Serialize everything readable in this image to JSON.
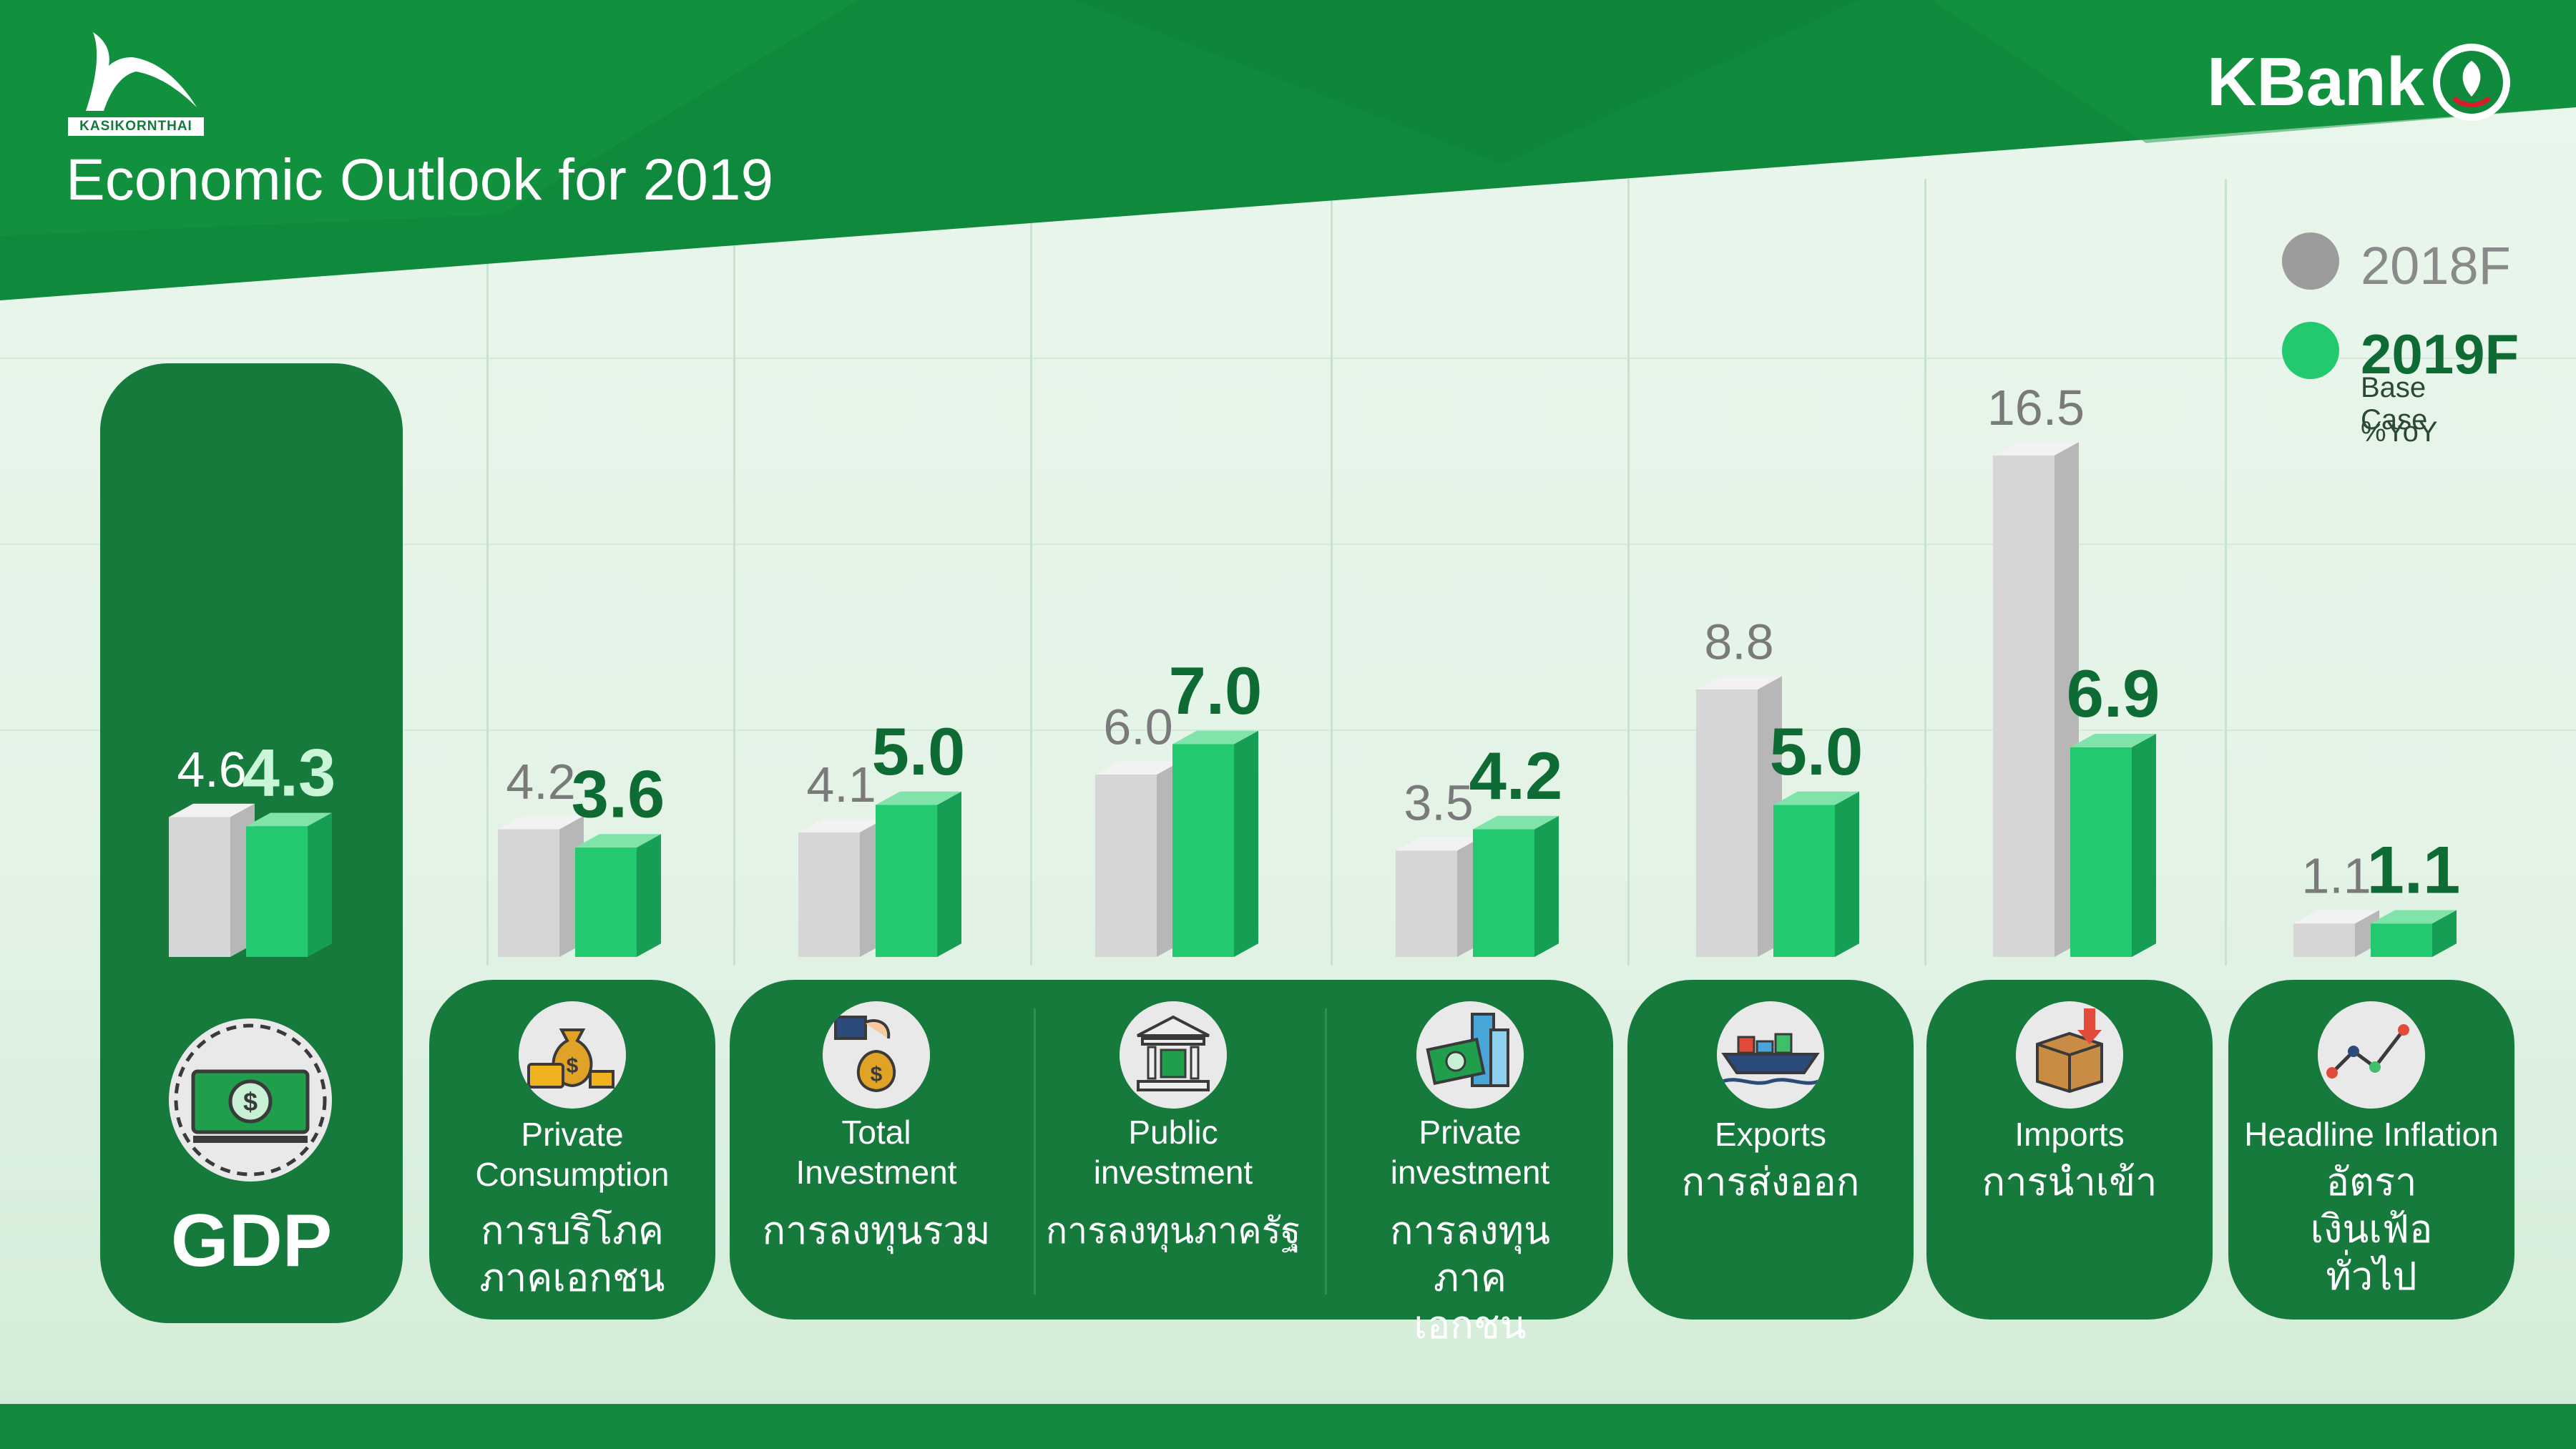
{
  "header": {
    "brand_small": "KASIKORNTHAI",
    "title": "Economic Outlook for 2019",
    "logo_text": "KBank"
  },
  "legend": {
    "series_2018": "2018F",
    "series_2019": "2019F",
    "base_case": "Base Case",
    "unit": "%YoY"
  },
  "colors": {
    "header_green": "#0f8a3d",
    "panel_green": "#157a3b",
    "bar_2018": "#d8d8d8",
    "bar_2019": "#23c96f",
    "gdp_2019_label": "#c9f5d9",
    "value_2018_text": "#7a7a7a",
    "value_2019_text": "#0e6b34"
  },
  "chart_data": {
    "type": "bar",
    "title": "Economic Outlook for 2019",
    "unit": "%YoY",
    "categories": [
      "GDP",
      "Private Consumption",
      "Total Investment",
      "Public investment",
      "Private investment",
      "Exports",
      "Imports",
      "Headline Inflation"
    ],
    "series": [
      {
        "name": "2018F",
        "values": [
          4.6,
          4.2,
          4.1,
          6.0,
          3.5,
          8.8,
          16.5,
          1.1
        ],
        "labels": [
          "4.6",
          "4.2",
          "4.1",
          "6.0",
          "3.5",
          "8.8",
          "16.5",
          "1.1"
        ]
      },
      {
        "name": "2019F",
        "values": [
          4.3,
          3.6,
          5.0,
          7.0,
          4.2,
          5.0,
          6.9,
          1.1
        ],
        "labels": [
          "4.3",
          "3.6",
          "5.0",
          "7.0",
          "4.2",
          "5.0",
          "6.9",
          "1.1"
        ]
      }
    ],
    "legend_position": "top-right"
  },
  "panels": [
    {
      "key": "gdp",
      "en": "GDP",
      "th": "",
      "icon": "money-cycle-icon"
    },
    {
      "key": "private-consumption",
      "en": "Private Consumption",
      "th": "การบริโภคภาคเอกชน",
      "icon": "money-bag-icon"
    },
    {
      "key": "total-investment",
      "en": "Total Investment",
      "th": "การลงทุนรวม",
      "icon": "hand-money-icon"
    },
    {
      "key": "public-investment",
      "en": "Public investment",
      "th": "การลงทุนภาครัฐ",
      "icon": "government-building-icon"
    },
    {
      "key": "private-investment",
      "en": "Private investment",
      "th": "การลงทุนภาคเอกชน",
      "icon": "city-money-icon"
    },
    {
      "key": "exports",
      "en": "Exports",
      "th": "การส่งออก",
      "icon": "cargo-ship-icon"
    },
    {
      "key": "imports",
      "en": "Imports",
      "th": "การนำเข้า",
      "icon": "package-import-icon"
    },
    {
      "key": "headline-inflation",
      "en": "Headline Inflation",
      "th": "อัตราเงินเฟ้อทั่วไป",
      "icon": "line-trend-icon"
    }
  ]
}
